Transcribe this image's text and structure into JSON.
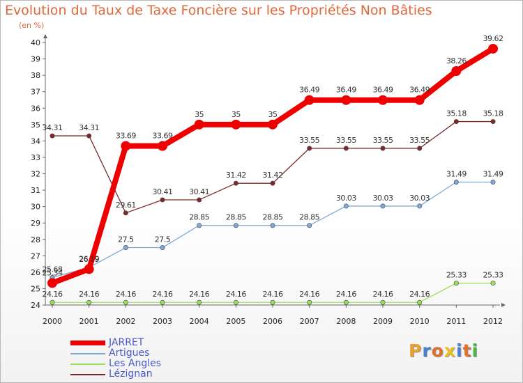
{
  "header": {
    "title": "Evolution du Taux de Taxe Foncière sur les Propriétés Non Bâties",
    "subtitle": "(en %)"
  },
  "logo": {
    "text": "Proxiti",
    "colors": [
      "#e8a030",
      "#4a7fd0",
      "#e07030",
      "#e8c020",
      "#4a7fd0",
      "#e07030",
      "#48b848"
    ]
  },
  "chart_data": {
    "type": "line",
    "title": "Evolution du Taux de Taxe Foncière sur les Propriétés Non Bâties",
    "ylabel": "(en %)",
    "xlabel": "",
    "categories": [
      "2000",
      "2001",
      "2002",
      "2003",
      "2004",
      "2005",
      "2006",
      "2007",
      "2008",
      "2009",
      "2010",
      "2011",
      "2012"
    ],
    "ylim": [
      24,
      40
    ],
    "yticks": [
      24,
      25,
      26,
      27,
      28,
      29,
      30,
      31,
      32,
      33,
      34,
      35,
      36,
      37,
      38,
      39,
      40
    ],
    "grid": false,
    "legend_position": "bottom-left",
    "series": [
      {
        "name": "JARRET",
        "color": "#ee0000",
        "values": [
          25.34,
          26.19,
          33.69,
          33.69,
          35,
          35,
          35,
          36.49,
          36.49,
          36.49,
          36.49,
          38.26,
          39.62
        ],
        "labels": [
          "25.34",
          "26.19",
          "33.69",
          "33.69",
          "35",
          "35",
          "35",
          "36.49",
          "36.49",
          "36.49",
          "36.49",
          "38.26",
          "39.62"
        ]
      },
      {
        "name": "Artigues",
        "color": "#7fa8d8",
        "values": [
          25.68,
          26.29,
          27.5,
          27.5,
          28.85,
          28.85,
          28.85,
          28.85,
          30.03,
          30.03,
          30.03,
          31.49,
          31.49
        ],
        "labels": [
          "25.68",
          "26.29",
          "27.5",
          "27.5",
          "28.85",
          "28.85",
          "28.85",
          "28.85",
          "30.03",
          "30.03",
          "30.03",
          "31.49",
          "31.49"
        ]
      },
      {
        "name": "Les Angles",
        "color": "#99e05a",
        "values": [
          24.16,
          24.16,
          24.16,
          24.16,
          24.16,
          24.16,
          24.16,
          24.16,
          24.16,
          24.16,
          24.16,
          25.33,
          25.33
        ],
        "labels": [
          "24.16",
          "24.16",
          "24.16",
          "24.16",
          "24.16",
          "24.16",
          "24.16",
          "24.16",
          "24.16",
          "24.16",
          "24.16",
          "25.33",
          "25.33"
        ]
      },
      {
        "name": "Lézignan",
        "color": "#7a2a2a",
        "values": [
          34.31,
          34.31,
          29.61,
          30.41,
          30.41,
          31.42,
          31.42,
          33.55,
          33.55,
          33.55,
          33.55,
          35.18,
          35.18
        ],
        "labels": [
          "34.31",
          "34.31",
          "29.61",
          "30.41",
          "30.41",
          "31.42",
          "31.42",
          "33.55",
          "33.55",
          "33.55",
          "33.55",
          "35.18",
          "35.18"
        ]
      }
    ]
  }
}
